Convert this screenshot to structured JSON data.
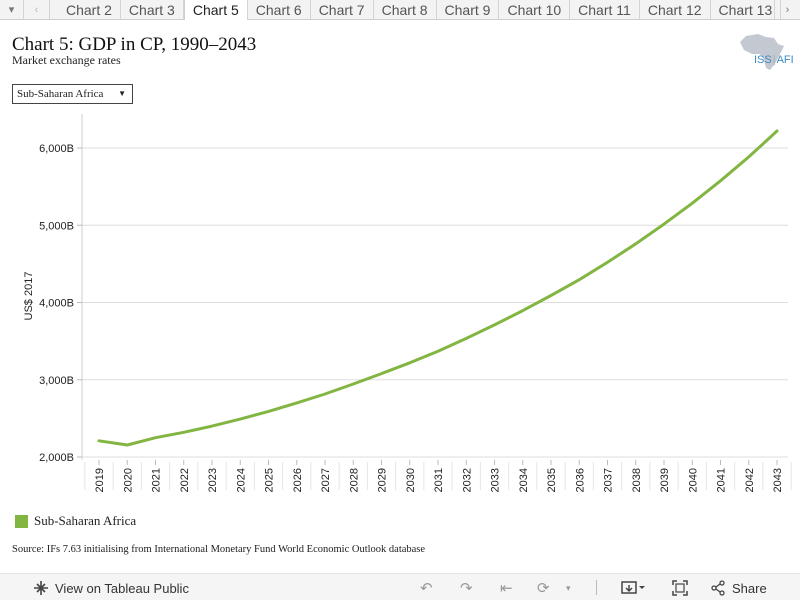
{
  "tabs": {
    "items": [
      "Chart 2",
      "Chart 3",
      "Chart 5",
      "Chart 6",
      "Chart 7",
      "Chart 8",
      "Chart 9",
      "Chart 10",
      "Chart 11",
      "Chart 12",
      "Chart 13"
    ],
    "active_index": 2
  },
  "header": {
    "title": "Chart 5: GDP in CP, 1990–2043",
    "subtitle": "Market exchange rates"
  },
  "logo": {
    "text": "ISS",
    "suffix": "AFI"
  },
  "filter": {
    "selected": "Sub-Saharan Africa"
  },
  "chart_data": {
    "type": "line",
    "ylabel": "US$ 2017",
    "x": [
      "2019",
      "2020",
      "2021",
      "2022",
      "2023",
      "2024",
      "2025",
      "2026",
      "2027",
      "2028",
      "2029",
      "2030",
      "2031",
      "2032",
      "2033",
      "2034",
      "2035",
      "2036",
      "2037",
      "2038",
      "2039",
      "2040",
      "2041",
      "2042",
      "2043"
    ],
    "series": [
      {
        "name": "Sub-Saharan Africa",
        "color": "#82b542",
        "values": [
          2210,
          2155,
          2250,
          2320,
          2400,
          2490,
          2590,
          2700,
          2815,
          2945,
          3080,
          3220,
          3370,
          3535,
          3710,
          3895,
          4090,
          4295,
          4520,
          4760,
          5015,
          5285,
          5575,
          5885,
          6220
        ]
      }
    ],
    "yticks": [
      2000,
      3000,
      4000,
      5000,
      6000
    ],
    "ytick_labels": [
      "2,000B",
      "3,000B",
      "4,000B",
      "5,000B",
      "6,000B"
    ],
    "ylim": [
      2000,
      6350
    ],
    "grid": true,
    "legend": "bottom-left"
  },
  "legend": {
    "label": "Sub-Saharan Africa",
    "color": "#82b542"
  },
  "source": "Source: IFs 7.63 initialising from International Monetary Fund World Economic Outlook database",
  "toolbar": {
    "view_label": "View on Tableau Public",
    "share_label": "Share"
  }
}
